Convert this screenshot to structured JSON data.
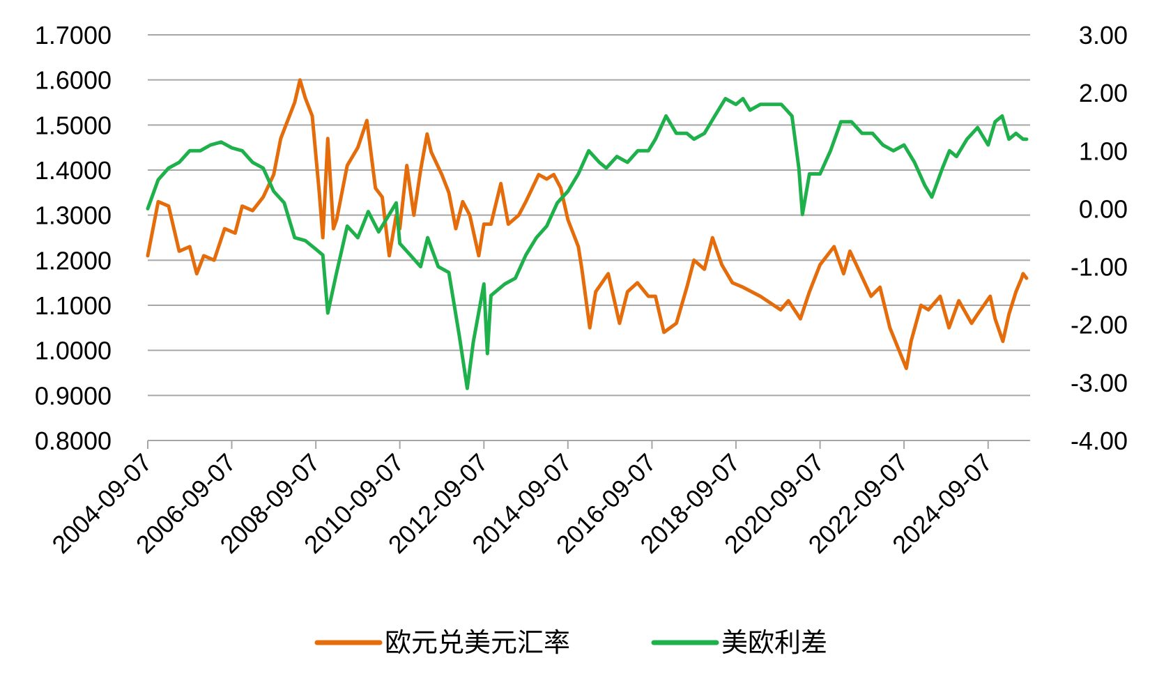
{
  "colors": {
    "eur_usd": "#E46C0A",
    "spread": "#1DB04B",
    "grid": "#A6A6A6",
    "text": "#000000"
  },
  "chart_data": {
    "type": "line",
    "x_range": [
      "2004-09-07",
      "2025-09-07"
    ],
    "x_ticks": [
      "2004-09-07",
      "2006-09-07",
      "2008-09-07",
      "2010-09-07",
      "2012-09-07",
      "2014-09-07",
      "2016-09-07",
      "2018-09-07",
      "2020-09-07",
      "2022-09-07",
      "2024-09-07"
    ],
    "y_left": {
      "ylim": [
        0.8,
        1.7
      ],
      "ticks": [
        "1.7000",
        "1.6000",
        "1.5000",
        "1.4000",
        "1.3000",
        "1.2000",
        "1.1000",
        "1.0000",
        "0.9000",
        "0.8000"
      ]
    },
    "y_right": {
      "ylim": [
        -4.0,
        3.0
      ],
      "ticks": [
        "3.00",
        "2.00",
        "1.00",
        "0.00",
        "-1.00",
        "-2.00",
        "-3.00",
        "-4.00"
      ]
    },
    "grid": true,
    "legend_position": "bottom",
    "series": [
      {
        "name": "欧元兑美元汇率",
        "axis": "left",
        "color": "#E46C0A",
        "points": [
          [
            "2004-09-07",
            1.21
          ],
          [
            "2004-12-07",
            1.33
          ],
          [
            "2005-03-07",
            1.32
          ],
          [
            "2005-06-07",
            1.22
          ],
          [
            "2005-09-07",
            1.23
          ],
          [
            "2005-11-07",
            1.17
          ],
          [
            "2006-01-07",
            1.21
          ],
          [
            "2006-04-07",
            1.2
          ],
          [
            "2006-07-07",
            1.27
          ],
          [
            "2006-10-07",
            1.26
          ],
          [
            "2006-12-07",
            1.32
          ],
          [
            "2007-03-07",
            1.31
          ],
          [
            "2007-06-07",
            1.34
          ],
          [
            "2007-09-07",
            1.39
          ],
          [
            "2007-11-07",
            1.47
          ],
          [
            "2008-03-07",
            1.55
          ],
          [
            "2008-04-22",
            1.6
          ],
          [
            "2008-06-07",
            1.56
          ],
          [
            "2008-08-07",
            1.52
          ],
          [
            "2008-10-07",
            1.35
          ],
          [
            "2008-11-07",
            1.25
          ],
          [
            "2008-12-20",
            1.47
          ],
          [
            "2009-02-07",
            1.27
          ],
          [
            "2009-03-07",
            1.29
          ],
          [
            "2009-06-07",
            1.41
          ],
          [
            "2009-09-07",
            1.45
          ],
          [
            "2009-11-25",
            1.51
          ],
          [
            "2010-02-07",
            1.36
          ],
          [
            "2010-04-07",
            1.34
          ],
          [
            "2010-06-07",
            1.21
          ],
          [
            "2010-08-07",
            1.3
          ],
          [
            "2010-09-07",
            1.27
          ],
          [
            "2010-11-07",
            1.41
          ],
          [
            "2011-01-07",
            1.3
          ],
          [
            "2011-03-07",
            1.4
          ],
          [
            "2011-05-02",
            1.48
          ],
          [
            "2011-06-07",
            1.44
          ],
          [
            "2011-09-07",
            1.39
          ],
          [
            "2011-11-07",
            1.35
          ],
          [
            "2012-01-07",
            1.27
          ],
          [
            "2012-03-07",
            1.33
          ],
          [
            "2012-05-07",
            1.3
          ],
          [
            "2012-07-24",
            1.21
          ],
          [
            "2012-09-07",
            1.28
          ],
          [
            "2012-11-07",
            1.28
          ],
          [
            "2013-02-01",
            1.37
          ],
          [
            "2013-04-07",
            1.28
          ],
          [
            "2013-07-07",
            1.3
          ],
          [
            "2013-09-07",
            1.33
          ],
          [
            "2013-12-27",
            1.39
          ],
          [
            "2014-03-07",
            1.38
          ],
          [
            "2014-05-07",
            1.39
          ],
          [
            "2014-07-07",
            1.36
          ],
          [
            "2014-09-07",
            1.29
          ],
          [
            "2014-12-07",
            1.23
          ],
          [
            "2015-01-07",
            1.18
          ],
          [
            "2015-03-16",
            1.05
          ],
          [
            "2015-05-07",
            1.13
          ],
          [
            "2015-08-24",
            1.17
          ],
          [
            "2015-11-30",
            1.06
          ],
          [
            "2016-02-07",
            1.13
          ],
          [
            "2016-05-03",
            1.15
          ],
          [
            "2016-08-07",
            1.12
          ],
          [
            "2016-10-07",
            1.12
          ],
          [
            "2016-12-20",
            1.04
          ],
          [
            "2017-04-07",
            1.06
          ],
          [
            "2017-07-07",
            1.14
          ],
          [
            "2017-09-07",
            1.2
          ],
          [
            "2017-12-07",
            1.18
          ],
          [
            "2018-02-15",
            1.25
          ],
          [
            "2018-05-07",
            1.19
          ],
          [
            "2018-08-07",
            1.15
          ],
          [
            "2018-11-07",
            1.14
          ],
          [
            "2019-04-07",
            1.12
          ],
          [
            "2019-09-30",
            1.09
          ],
          [
            "2019-12-07",
            1.11
          ],
          [
            "2020-03-20",
            1.07
          ],
          [
            "2020-06-07",
            1.13
          ],
          [
            "2020-09-07",
            1.19
          ],
          [
            "2021-01-07",
            1.23
          ],
          [
            "2021-03-31",
            1.17
          ],
          [
            "2021-05-25",
            1.22
          ],
          [
            "2021-08-07",
            1.18
          ],
          [
            "2021-11-24",
            1.12
          ],
          [
            "2022-02-10",
            1.14
          ],
          [
            "2022-05-07",
            1.05
          ],
          [
            "2022-09-27",
            0.96
          ],
          [
            "2022-11-07",
            1.02
          ],
          [
            "2023-02-01",
            1.1
          ],
          [
            "2023-04-07",
            1.09
          ],
          [
            "2023-07-18",
            1.12
          ],
          [
            "2023-10-03",
            1.05
          ],
          [
            "2023-12-27",
            1.11
          ],
          [
            "2024-04-16",
            1.06
          ],
          [
            "2024-06-07",
            1.08
          ],
          [
            "2024-09-25",
            1.12
          ],
          [
            "2024-11-07",
            1.07
          ],
          [
            "2025-01-13",
            1.02
          ],
          [
            "2025-03-07",
            1.08
          ],
          [
            "2025-05-07",
            1.13
          ],
          [
            "2025-06-25",
            1.16
          ],
          [
            "2025-07-07",
            1.17
          ],
          [
            "2025-08-07",
            1.16
          ]
        ]
      },
      {
        "name": "美欧利差",
        "axis": "right",
        "color": "#1DB04B",
        "points": [
          [
            "2004-09-07",
            0.0
          ],
          [
            "2004-12-07",
            0.5
          ],
          [
            "2005-03-07",
            0.7
          ],
          [
            "2005-06-07",
            0.8
          ],
          [
            "2005-09-07",
            1.0
          ],
          [
            "2005-12-07",
            1.0
          ],
          [
            "2006-03-07",
            1.1
          ],
          [
            "2006-06-07",
            1.15
          ],
          [
            "2006-09-07",
            1.05
          ],
          [
            "2006-12-07",
            1.0
          ],
          [
            "2007-03-07",
            0.8
          ],
          [
            "2007-06-07",
            0.7
          ],
          [
            "2007-09-07",
            0.3
          ],
          [
            "2007-12-07",
            0.1
          ],
          [
            "2008-03-07",
            -0.5
          ],
          [
            "2008-06-07",
            -0.55
          ],
          [
            "2008-09-07",
            -0.7
          ],
          [
            "2008-11-07",
            -0.8
          ],
          [
            "2008-12-20",
            -1.8
          ],
          [
            "2009-03-07",
            -1.1
          ],
          [
            "2009-06-07",
            -0.3
          ],
          [
            "2009-09-07",
            -0.5
          ],
          [
            "2009-12-07",
            -0.05
          ],
          [
            "2010-03-07",
            -0.4
          ],
          [
            "2010-06-07",
            -0.1
          ],
          [
            "2010-08-07",
            0.1
          ],
          [
            "2010-09-07",
            -0.6
          ],
          [
            "2010-12-07",
            -0.8
          ],
          [
            "2011-03-07",
            -1.0
          ],
          [
            "2011-05-07",
            -0.5
          ],
          [
            "2011-08-07",
            -1.0
          ],
          [
            "2011-11-07",
            -1.1
          ],
          [
            "2012-02-07",
            -2.2
          ],
          [
            "2012-04-15",
            -3.1
          ],
          [
            "2012-06-07",
            -2.3
          ],
          [
            "2012-09-07",
            -1.3
          ],
          [
            "2012-10-07",
            -2.5
          ],
          [
            "2012-11-07",
            -1.5
          ],
          [
            "2013-03-07",
            -1.3
          ],
          [
            "2013-06-07",
            -1.2
          ],
          [
            "2013-09-07",
            -0.8
          ],
          [
            "2013-12-07",
            -0.5
          ],
          [
            "2014-03-07",
            -0.3
          ],
          [
            "2014-06-07",
            0.1
          ],
          [
            "2014-09-07",
            0.3
          ],
          [
            "2014-12-07",
            0.6
          ],
          [
            "2015-03-07",
            1.0
          ],
          [
            "2015-06-07",
            0.8
          ],
          [
            "2015-08-07",
            0.7
          ],
          [
            "2015-11-07",
            0.9
          ],
          [
            "2016-02-07",
            0.8
          ],
          [
            "2016-05-07",
            1.0
          ],
          [
            "2016-08-07",
            1.0
          ],
          [
            "2016-10-07",
            1.2
          ],
          [
            "2017-01-07",
            1.6
          ],
          [
            "2017-04-07",
            1.3
          ],
          [
            "2017-07-07",
            1.3
          ],
          [
            "2017-09-07",
            1.2
          ],
          [
            "2017-12-07",
            1.3
          ],
          [
            "2018-03-07",
            1.6
          ],
          [
            "2018-06-07",
            1.9
          ],
          [
            "2018-09-07",
            1.8
          ],
          [
            "2018-11-07",
            1.9
          ],
          [
            "2019-01-07",
            1.7
          ],
          [
            "2019-04-07",
            1.8
          ],
          [
            "2019-07-07",
            1.8
          ],
          [
            "2019-10-07",
            1.8
          ],
          [
            "2020-01-07",
            1.6
          ],
          [
            "2020-03-07",
            0.7
          ],
          [
            "2020-04-07",
            -0.1
          ],
          [
            "2020-06-07",
            0.6
          ],
          [
            "2020-09-07",
            0.6
          ],
          [
            "2020-12-07",
            1.0
          ],
          [
            "2021-03-07",
            1.5
          ],
          [
            "2021-06-07",
            1.5
          ],
          [
            "2021-09-07",
            1.3
          ],
          [
            "2021-12-07",
            1.3
          ],
          [
            "2022-03-07",
            1.1
          ],
          [
            "2022-06-07",
            1.0
          ],
          [
            "2022-09-07",
            1.1
          ],
          [
            "2022-12-07",
            0.8
          ],
          [
            "2023-03-07",
            0.4
          ],
          [
            "2023-05-07",
            0.2
          ],
          [
            "2023-08-07",
            0.7
          ],
          [
            "2023-10-07",
            1.0
          ],
          [
            "2023-12-07",
            0.9
          ],
          [
            "2024-03-07",
            1.2
          ],
          [
            "2024-06-07",
            1.4
          ],
          [
            "2024-09-07",
            1.1
          ],
          [
            "2024-11-07",
            1.5
          ],
          [
            "2025-01-07",
            1.6
          ],
          [
            "2025-03-07",
            1.2
          ],
          [
            "2025-05-07",
            1.3
          ],
          [
            "2025-07-07",
            1.2
          ],
          [
            "2025-08-07",
            1.2
          ]
        ]
      }
    ]
  }
}
